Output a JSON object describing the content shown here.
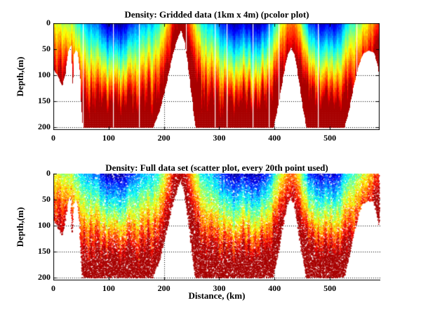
{
  "figure": {
    "background": "#ffffff",
    "text_color": "#000000"
  },
  "chart_data": [
    {
      "type": "heatmap",
      "title": "Density: Gridded data (1km x 4m) (pcolor plot)",
      "xlabel": "",
      "ylabel": "Depth,(m)",
      "xlim": [
        0,
        590
      ],
      "ylim": [
        0,
        205
      ],
      "y_axis": "depth in m, 0 at top increasing downward",
      "xticks": [
        "0",
        "100",
        "200",
        "300",
        "400",
        "500"
      ],
      "xtick_values": [
        0,
        100,
        200,
        300,
        400,
        500
      ],
      "yticks": [
        "0",
        "50",
        "100",
        "150",
        "200"
      ],
      "ytick_values": [
        0,
        50,
        100,
        150,
        200
      ],
      "grid": "dotted black, drawn under data",
      "box": true,
      "colormap": "jet",
      "value_meaning": "relative seawater density: 0=light surface water (dark blue) to 1=dense deep water (dark red)",
      "grid_cell_km_m": [
        1,
        4
      ],
      "pycnocline_scale_m": 158,
      "value_cap": 0.96,
      "seafloor_profile_km_m": [
        [
          0,
          88
        ],
        [
          8,
          100
        ],
        [
          16,
          120
        ],
        [
          22,
          95
        ],
        [
          26,
          58
        ],
        [
          30,
          45
        ],
        [
          33,
          42
        ],
        [
          34,
          112
        ],
        [
          35,
          118
        ],
        [
          37,
          60
        ],
        [
          41,
          50
        ],
        [
          45,
          58
        ],
        [
          48,
          95
        ],
        [
          51,
          160
        ],
        [
          53,
          201
        ],
        [
          180,
          201
        ],
        [
          193,
          165
        ],
        [
          204,
          118
        ],
        [
          214,
          68
        ],
        [
          224,
          30
        ],
        [
          231,
          13
        ],
        [
          238,
          38
        ],
        [
          244,
          85
        ],
        [
          251,
          145
        ],
        [
          257,
          201
        ],
        [
          398,
          201
        ],
        [
          407,
          155
        ],
        [
          415,
          105
        ],
        [
          423,
          62
        ],
        [
          430,
          46
        ],
        [
          437,
          62
        ],
        [
          444,
          110
        ],
        [
          451,
          160
        ],
        [
          458,
          201
        ],
        [
          526,
          201
        ],
        [
          535,
          165
        ],
        [
          544,
          115
        ],
        [
          553,
          78
        ],
        [
          560,
          58
        ],
        [
          570,
          52
        ],
        [
          580,
          56
        ],
        [
          585,
          74
        ],
        [
          590,
          100
        ]
      ],
      "surface_density_km_value": [
        [
          0,
          0.45
        ],
        [
          12,
          0.42
        ],
        [
          25,
          0.36
        ],
        [
          55,
          0.3
        ],
        [
          80,
          0.22
        ],
        [
          95,
          0.06
        ],
        [
          110,
          0.03
        ],
        [
          128,
          0.05
        ],
        [
          140,
          0.14
        ],
        [
          155,
          0.26
        ],
        [
          175,
          0.3
        ],
        [
          200,
          0.34
        ],
        [
          215,
          0.45
        ],
        [
          228,
          0.6
        ],
        [
          235,
          0.55
        ],
        [
          248,
          0.4
        ],
        [
          262,
          0.32
        ],
        [
          285,
          0.3
        ],
        [
          300,
          0.22
        ],
        [
          315,
          0.08
        ],
        [
          330,
          0.03
        ],
        [
          342,
          0.1
        ],
        [
          352,
          0.05
        ],
        [
          368,
          0.03
        ],
        [
          382,
          0.07
        ],
        [
          394,
          0.18
        ],
        [
          408,
          0.3
        ],
        [
          420,
          0.4
        ],
        [
          430,
          0.48
        ],
        [
          441,
          0.4
        ],
        [
          452,
          0.22
        ],
        [
          462,
          0.06
        ],
        [
          475,
          0.1
        ],
        [
          487,
          0.04
        ],
        [
          497,
          0.1
        ],
        [
          508,
          0.04
        ],
        [
          518,
          0.12
        ],
        [
          528,
          0.25
        ],
        [
          540,
          0.33
        ],
        [
          552,
          0.32
        ],
        [
          565,
          0.33
        ],
        [
          578,
          0.4
        ],
        [
          590,
          0.44
        ]
      ],
      "isopycnal_uplift_ridges": [
        {
          "center_km": -15,
          "amplitude_m": 60,
          "width_km": 42
        },
        {
          "center_km": 33,
          "amplitude_m": 35,
          "width_km": 10
        },
        {
          "center_km": 230,
          "amplitude_m": 150,
          "width_km": 27
        },
        {
          "center_km": 430,
          "amplitude_m": 88,
          "width_km": 28
        },
        {
          "center_km": 612,
          "amplitude_m": 130,
          "width_km": 55
        }
      ],
      "missing_data_columns_km": [
        53,
        108,
        155,
        240,
        292,
        313,
        360,
        390,
        407,
        478,
        548
      ]
    },
    {
      "type": "scatter",
      "title": "Density: Full data set (scatter plot, every 20th point used)",
      "xlabel": "Distance, (km)",
      "ylabel": "Depth,(m)",
      "xlim": [
        0,
        590
      ],
      "ylim": [
        0,
        205
      ],
      "xticks": [
        "0",
        "100",
        "200",
        "300",
        "400",
        "500"
      ],
      "xtick_values": [
        0,
        100,
        200,
        300,
        400,
        500
      ],
      "yticks": [
        "0",
        "50",
        "100",
        "150",
        "200"
      ],
      "ytick_values": [
        0,
        50,
        100,
        150,
        200
      ],
      "grid": "dotted black, drawn under data",
      "box": false,
      "colormap": "jet",
      "marker": "small square dots ~2px",
      "field_source": "same density field, seafloor profile, surface values and ridge uplifts as chart 0, without missing data columns"
    }
  ]
}
